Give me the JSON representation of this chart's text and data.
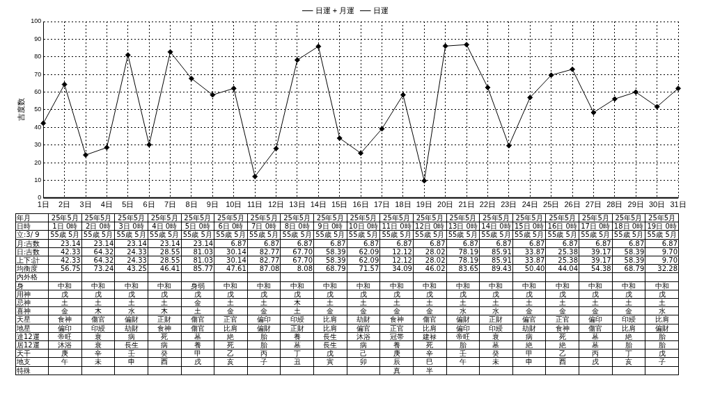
{
  "chart_data": [
    {
      "type": "line",
      "ylabel": "吉度数",
      "categories": [
        "1日",
        "2日",
        "3日",
        "4日",
        "5日",
        "6日",
        "7日",
        "8日",
        "9日",
        "10日",
        "11日",
        "12日",
        "13日",
        "14日",
        "15日",
        "16日",
        "17日",
        "18日",
        "19日",
        "20日",
        "21日",
        "22日",
        "23日",
        "24日",
        "25日",
        "26日",
        "27日",
        "28日",
        "29日",
        "30日",
        "31日"
      ],
      "series": [
        {
          "name": "日運 + 月運",
          "color": "#000000",
          "values": [
            42.33,
            64.32,
            24.33,
            28.55,
            81.03,
            30.14,
            82.77,
            67.7,
            58.39,
            62.09,
            12.12,
            28.02,
            78.19,
            85.91,
            33.87,
            25.38,
            39.17,
            58.39,
            9.7,
            86.1,
            86.9,
            62.6,
            29.6,
            56.9,
            69.6,
            72.9,
            48.4,
            56.1,
            60.0,
            51.7,
            62.1
          ]
        },
        {
          "name": "日運",
          "color": "#000000",
          "values": [
            null,
            null,
            null,
            null,
            null,
            null,
            null,
            null,
            null,
            null,
            null,
            null,
            null,
            null,
            null,
            null,
            null,
            null,
            null,
            null,
            null,
            null,
            null,
            null,
            null,
            null,
            null,
            null,
            null,
            null,
            null
          ]
        }
      ],
      "ylim": [
        0,
        100
      ],
      "yticks": [
        0,
        10,
        20,
        30,
        40,
        50,
        60,
        70,
        80,
        90,
        100
      ],
      "grid": true,
      "legend": "top",
      "marker": "diamond",
      "line_style": "solid"
    },
    {
      "type": "other",
      "y_categories": [
        "年月",
        "日時",
        "立:3/ 9",
        "月:吉数",
        "日:吉数",
        "上下:計",
        "均衡度",
        "内外格",
        "身",
        "用神",
        "忌神",
        "喜神",
        "天星",
        "地星",
        "達12運",
        "居12運",
        "天干",
        "地支",
        "特殊"
      ],
      "cell_labels": [
        [
          "25年5月",
          "25年5月",
          "25年5月",
          "25年5月",
          "25年5月",
          "25年5月",
          "25年5月",
          "25年5月",
          "25年5月",
          "25年5月",
          "25年5月",
          "25年5月",
          "25年5月",
          "25年5月",
          "25年5月",
          "25年5月",
          "25年5月",
          "25年5月",
          "25年5月"
        ],
        [
          "1日 0時",
          "2日 0時",
          "3日 0時",
          "4日 0時",
          "5日 0時",
          "6日 0時",
          "7日 0時",
          "8日 0時",
          "9日 0時",
          "10日 0時",
          "11日 0時",
          "12日 0時",
          "13日 0時",
          "14日 0時",
          "15日 0時",
          "16日 0時",
          "17日 0時",
          "18日 0時",
          "19日 0時"
        ],
        [
          "55歳 5月",
          "55歳 5月",
          "55歳 5月",
          "55歳 5月",
          "55歳 5月",
          "55歳 5月",
          "55歳 5月",
          "55歳 5月",
          "55歳 5月",
          "55歳 5月",
          "55歳 5月",
          "55歳 5月",
          "55歳 5月",
          "55歳 5月",
          "55歳 5月",
          "55歳 5月",
          "55歳 5月",
          "55歳 5月",
          "55歳 5月"
        ],
        [
          "23.14",
          "23.14",
          "23.14",
          "23.14",
          "23.14",
          "6.87",
          "6.87",
          "6.87",
          "6.87",
          "6.87",
          "6.87",
          "6.87",
          "6.87",
          "6.87",
          "6.87",
          "6.87",
          "6.87",
          "6.87",
          "6.87"
        ],
        [
          "42.33",
          "64.32",
          "24.33",
          "28.55",
          "81.03",
          "30.14",
          "82.77",
          "67.70",
          "58.39",
          "62.09",
          "12.12",
          "28.02",
          "78.19",
          "85.91",
          "33.87",
          "25.38",
          "39.17",
          "58.39",
          "9.70"
        ],
        [
          "42.33",
          "64.32",
          "24.33",
          "28.55",
          "81.03",
          "30.14",
          "82.77",
          "67.70",
          "58.39",
          "62.09",
          "12.12",
          "28.02",
          "78.19",
          "85.91",
          "33.87",
          "25.38",
          "39.17",
          "58.39",
          "9.70"
        ],
        [
          "56.75",
          "73.24",
          "43.25",
          "46.41",
          "85.77",
          "47.61",
          "87.08",
          "8.08",
          "68.79",
          "71.57",
          "34.09",
          "46.02",
          "83.65",
          "89.43",
          "50.40",
          "44.04",
          "54.38",
          "68.79",
          "32.28"
        ],
        [
          null,
          null,
          null,
          null,
          null,
          null,
          null,
          null,
          null,
          null,
          null,
          null,
          null,
          null,
          null,
          null,
          null,
          null,
          null
        ],
        [
          "中和",
          "中和",
          "中和",
          "中和",
          "身弱",
          "中和",
          "中和",
          "中和",
          "中和",
          "中和",
          "中和",
          "中和",
          "中和",
          "中和",
          "中和",
          "中和",
          "中和",
          "中和",
          "中和"
        ],
        [
          "戊",
          "戊",
          "戊",
          "戊",
          "戊",
          "戊",
          "戊",
          "戊",
          "戊",
          "戊",
          "戊",
          "戊",
          "戊",
          "戊",
          "戊",
          "戊",
          "戊",
          "戊",
          "戊"
        ],
        [
          "土",
          "土",
          "土",
          "土",
          "金",
          "土",
          "土",
          "木",
          "土",
          "土",
          "土",
          "土",
          "土",
          "土",
          "土",
          "土",
          "土",
          "土",
          "土"
        ],
        [
          "金",
          "木",
          "水",
          "木",
          "土",
          "金",
          "金",
          "土",
          "金",
          "金",
          "金",
          "金",
          "水",
          "水",
          "金",
          "金",
          "金",
          "金",
          "水"
        ],
        [
          "食神",
          "傷官",
          "偏財",
          "正財",
          "傷官",
          "正官",
          "偏印",
          "印綬",
          "比肩",
          "劫財",
          "食神",
          "傷官",
          "偏財",
          "正財",
          "偏官",
          "正官",
          "偏印",
          "印綬",
          "比肩"
        ],
        [
          "偏印",
          "印綬",
          "劫財",
          "食神",
          "傷官",
          "比肩",
          "偏財",
          "正財",
          "比肩",
          "偏官",
          "正官",
          "比肩",
          "偏印",
          "印綬",
          "劫財",
          "食神",
          "傷官",
          "比肩",
          "偏財"
        ],
        [
          "帝旺",
          "衰",
          "病",
          "死",
          "墓",
          "絶",
          "胎",
          "養",
          "長生",
          "沐浴",
          "冠帯",
          "建禄",
          "帝旺",
          "衰",
          "病",
          "死",
          "墓",
          "絶",
          "胎"
        ],
        [
          "沐浴",
          "衰",
          "長生",
          "病",
          "養",
          "死",
          "胎",
          "墓",
          "長生",
          "病",
          "養",
          "死",
          "胎",
          "墓",
          "絶",
          "絶",
          "墓",
          "胎",
          "胎"
        ],
        [
          "庚",
          "辛",
          "壬",
          "癸",
          "甲",
          "乙",
          "丙",
          "丁",
          "戊",
          "己",
          "庚",
          "辛",
          "壬",
          "癸",
          "甲",
          "乙",
          "丙",
          "丁",
          "戊"
        ],
        [
          "午",
          "未",
          "申",
          "酉",
          "戌",
          "亥",
          "子",
          "丑",
          "寅",
          "卯",
          "辰",
          "巳",
          "午",
          "未",
          "申",
          "酉",
          "戌",
          "亥",
          "子"
        ],
        [
          null,
          null,
          null,
          null,
          null,
          null,
          null,
          null,
          null,
          null,
          "真",
          "半",
          null,
          null,
          null,
          null,
          null,
          null,
          null
        ]
      ]
    }
  ]
}
